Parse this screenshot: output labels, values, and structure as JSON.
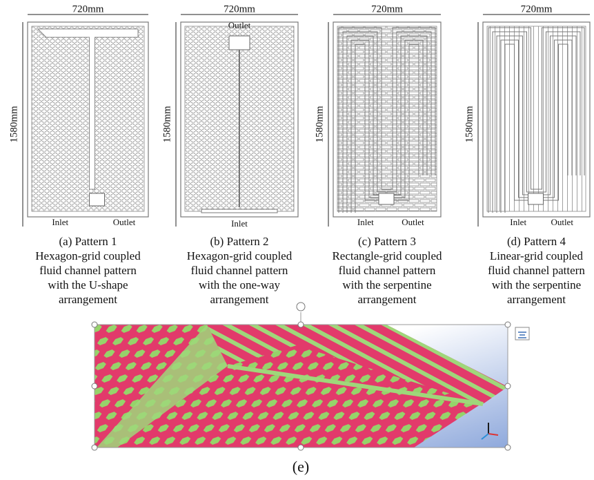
{
  "panels": [
    {
      "width": "720mm",
      "height": "1580mm",
      "labels": [
        "Inlet",
        "Outlet"
      ],
      "caption": [
        "(a) Pattern 1",
        "Hexagon-grid coupled",
        "fluid channel pattern",
        "with the U-shape",
        "arrangement"
      ]
    },
    {
      "width": "720mm",
      "height": "1580mm",
      "labels": [
        "Outlet",
        "Inlet"
      ],
      "caption": [
        "(b) Pattern 2",
        "Hexagon-grid coupled",
        "fluid channel pattern",
        "with the one-way",
        "arrangement"
      ]
    },
    {
      "width": "720mm",
      "height": "1580mm",
      "labels": [
        "Inlet",
        "Outlet"
      ],
      "caption": [
        "(c) Pattern 3",
        "Rectangle-grid coupled",
        "fluid channel pattern",
        "with the serpentine",
        "arrangement"
      ]
    },
    {
      "width": "720mm",
      "height": "1580mm",
      "labels": [
        "Inlet",
        "Outlet"
      ],
      "caption": [
        "(d) Pattern 4",
        "Linear-grid coupled",
        "fluid channel pattern",
        "with the serpentine",
        "arrangement"
      ]
    }
  ],
  "figure_label": "(e)"
}
